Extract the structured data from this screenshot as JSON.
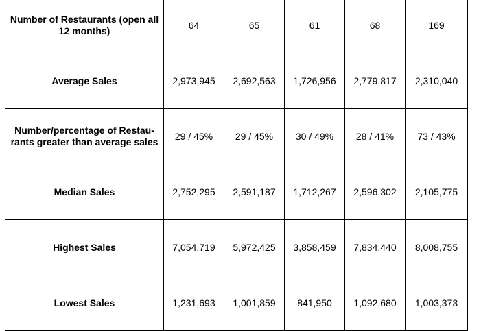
{
  "rows": [
    {
      "label": "Number of Restaurants (open all 12 months)",
      "values": [
        "64",
        "65",
        "61",
        "68",
        "169"
      ]
    },
    {
      "label": "Average Sales",
      "values": [
        "2,973,945",
        "2,692,563",
        "1,726,956",
        "2,779,817",
        "2,310,040"
      ]
    },
    {
      "label": "Number/percentage of Restau-rants greater than average sales",
      "values": [
        "29 / 45%",
        "29 / 45%",
        "30 / 49%",
        "28 / 41%",
        "73 / 43%"
      ]
    },
    {
      "label": "Median Sales",
      "values": [
        "2,752,295",
        "2,591,187",
        "1,712,267",
        "2,596,302",
        "2,105,775"
      ]
    },
    {
      "label": "Highest Sales",
      "values": [
        "7,054,719",
        "5,972,425",
        "3,858,459",
        "7,834,440",
        "8,008,755"
      ]
    },
    {
      "label": "Lowest Sales",
      "values": [
        "1,231,693",
        "1,001,859",
        "841,950",
        "1,092,680",
        "1,003,373"
      ]
    }
  ]
}
